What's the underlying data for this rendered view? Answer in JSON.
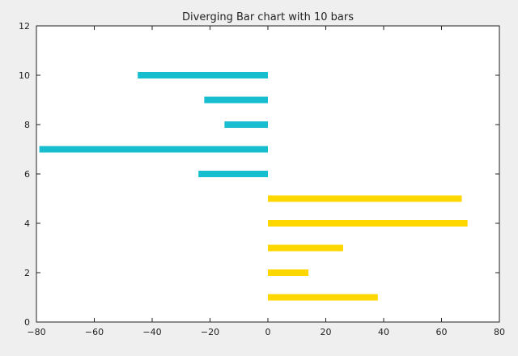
{
  "chart_data": {
    "type": "bar",
    "orientation": "horizontal",
    "title": "Diverging Bar chart with 10 bars",
    "xlabel": "",
    "ylabel": "",
    "xlim": [
      -80,
      80
    ],
    "ylim": [
      0,
      12
    ],
    "x_ticks": [
      -80,
      -60,
      -40,
      -20,
      0,
      20,
      40,
      60,
      80
    ],
    "y_ticks": [
      0,
      2,
      4,
      6,
      8,
      10,
      12
    ],
    "grid": false,
    "positive_color": "#ffd700",
    "negative_color": "#17becf",
    "bars": [
      {
        "y": 1,
        "value": 38
      },
      {
        "y": 2,
        "value": 14
      },
      {
        "y": 3,
        "value": 26
      },
      {
        "y": 4,
        "value": 69
      },
      {
        "y": 5,
        "value": 67
      },
      {
        "y": 6,
        "value": -24
      },
      {
        "y": 7,
        "value": -79
      },
      {
        "y": 8,
        "value": -15
      },
      {
        "y": 9,
        "value": -22
      },
      {
        "y": 10,
        "value": -45
      }
    ]
  }
}
